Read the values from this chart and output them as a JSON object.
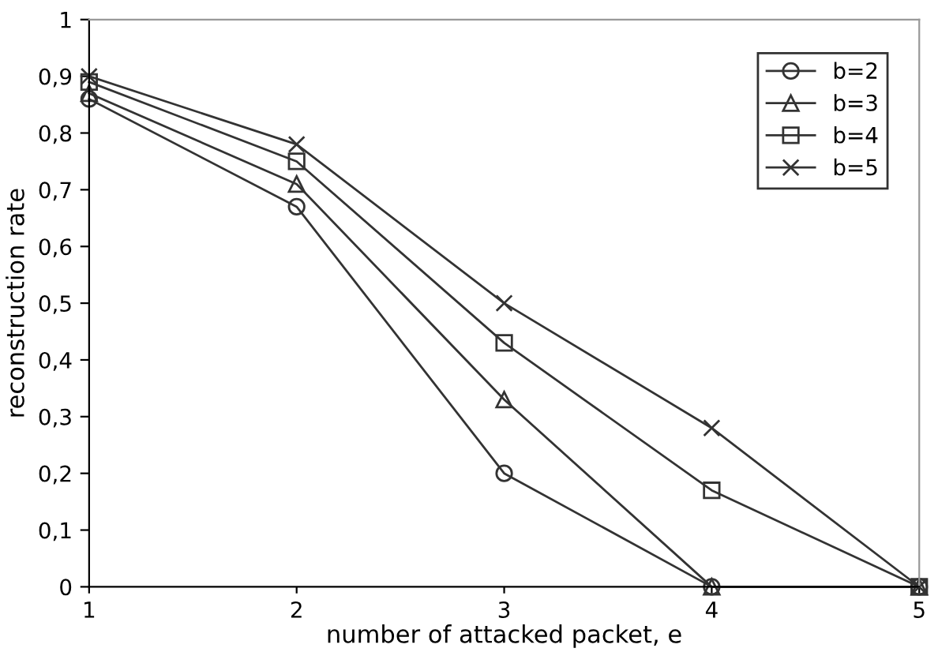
{
  "chart_data": {
    "type": "line",
    "xlabel": "number of attacked packet, e",
    "ylabel": "reconstruction rate",
    "x": [
      1,
      2,
      3,
      4,
      5
    ],
    "xlim": [
      1,
      5
    ],
    "xticks": [
      1,
      2,
      3,
      4,
      5
    ],
    "ylim": [
      0,
      1
    ],
    "yticks": [
      0,
      {
        "value": 0.1,
        "label": "0,1"
      },
      {
        "value": 0.2,
        "label": "0,2"
      },
      {
        "value": 0.3,
        "label": "0,3"
      },
      {
        "value": 0.4,
        "label": "0,4"
      },
      {
        "value": 0.5,
        "label": "0,5"
      },
      {
        "value": 0.6,
        "label": "0,6"
      },
      {
        "value": 0.7,
        "label": "0,7"
      },
      {
        "value": 0.8,
        "label": "0,8"
      },
      {
        "value": 0.9,
        "label": "0,9"
      },
      1
    ],
    "grid": false,
    "legend": "top right",
    "line_style": "solid",
    "series": [
      {
        "name": "b=2",
        "color": "#333333",
        "marker": "circle",
        "values": [
          0.86,
          0.67,
          0.2,
          0,
          0
        ]
      },
      {
        "name": "b=3",
        "color": "#333333",
        "marker": "triangle",
        "values": [
          0.87,
          0.71,
          0.33,
          0,
          0
        ]
      },
      {
        "name": "b=4",
        "color": "#333333",
        "marker": "square",
        "values": [
          0.89,
          0.75,
          0.43,
          0.17,
          0
        ]
      },
      {
        "name": "b=5",
        "color": "#333333",
        "marker": "cross",
        "values": [
          0.9,
          0.78,
          0.5,
          0.28,
          0
        ]
      }
    ]
  }
}
